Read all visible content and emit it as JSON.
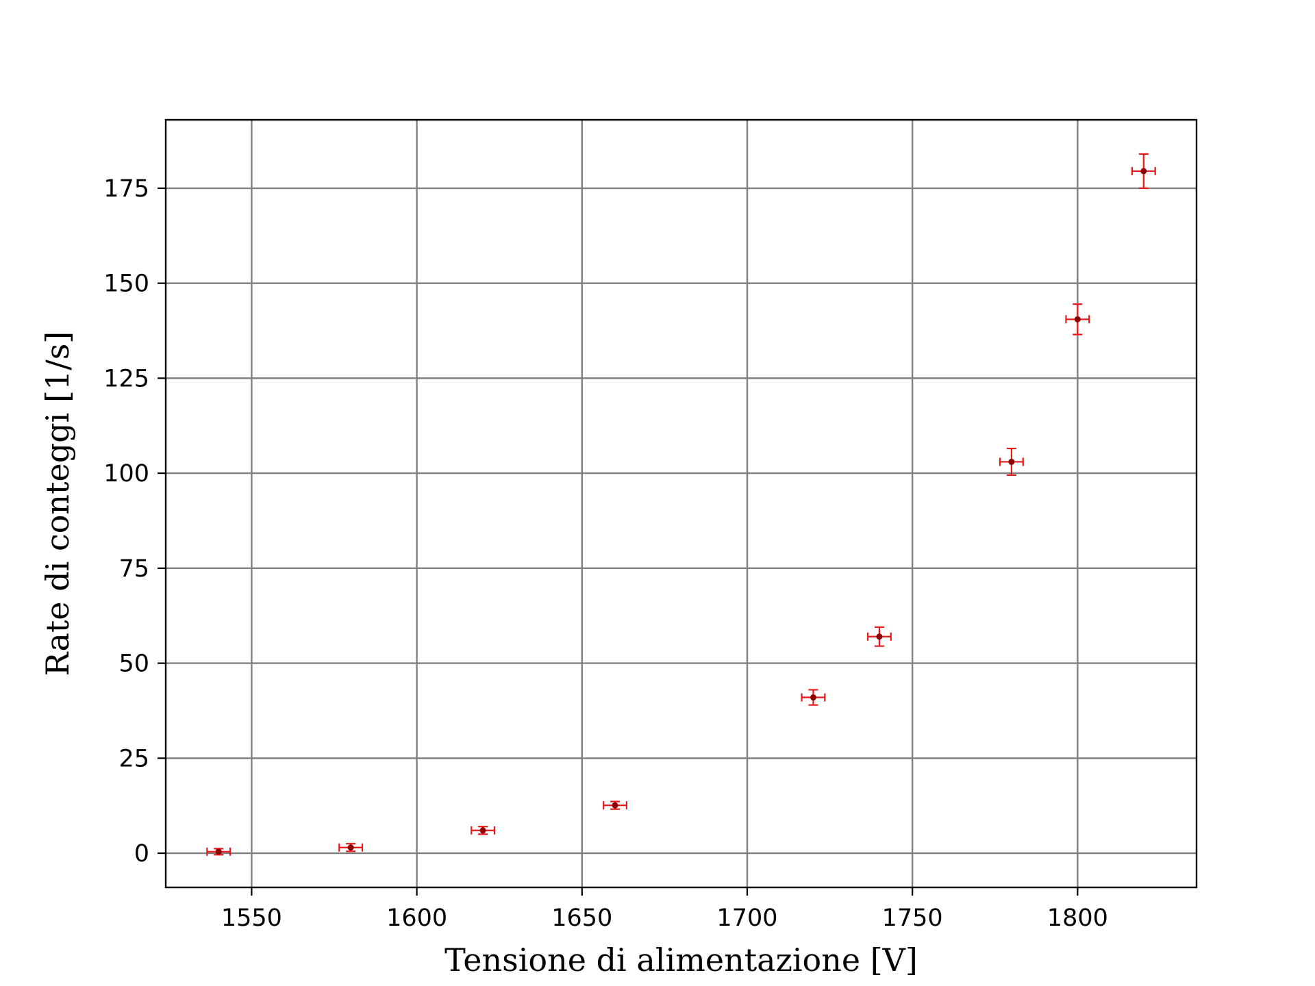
{
  "chart_data": {
    "type": "scatter",
    "title": "",
    "xlabel": "Tensione di alimentazione [V]",
    "ylabel": "Rate di conteggi [1/s]",
    "xlim": [
      1524,
      1836
    ],
    "ylim": [
      -9,
      193
    ],
    "xticks": [
      1550,
      1600,
      1650,
      1700,
      1750,
      1800
    ],
    "yticks": [
      0,
      25,
      50,
      75,
      100,
      125,
      150,
      175
    ],
    "grid": true,
    "legend": "none",
    "colors": {
      "marker": "#8b0000",
      "errorbar": "#e8191a",
      "grid": "#808080",
      "axes": "#000000"
    },
    "series": [
      {
        "x": [
          1540,
          1580,
          1620,
          1660,
          1720,
          1740,
          1780,
          1800,
          1820
        ],
        "y": [
          0.4,
          1.5,
          6.0,
          12.6,
          41.0,
          57.0,
          103.0,
          140.5,
          179.5
        ],
        "xerr": [
          3.5,
          3.5,
          3.5,
          3.5,
          3.5,
          3.5,
          3.5,
          3.5,
          3.5
        ],
        "yerr": [
          0.8,
          1.0,
          1.0,
          1.0,
          2.0,
          2.5,
          3.5,
          4.0,
          4.5
        ]
      }
    ]
  }
}
